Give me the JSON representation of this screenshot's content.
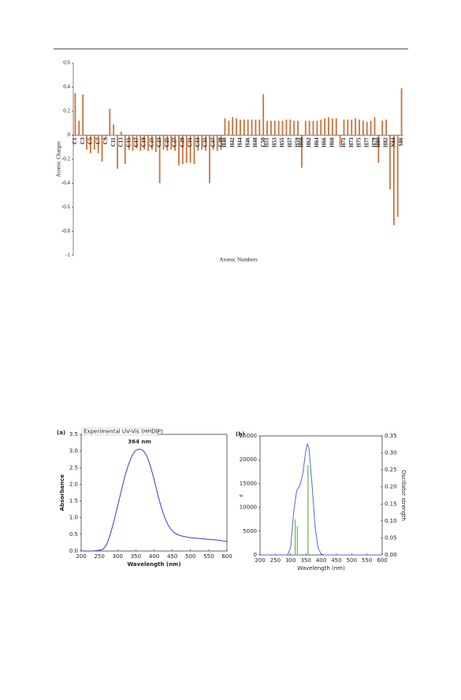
{
  "chart_data": [
    {
      "type": "bar",
      "xlabel": "Atomic Numbers",
      "ylabel": "Atomic Charges",
      "color": "#c8743c",
      "ylim": [
        -1,
        0.6
      ],
      "yticks": [
        0.6,
        0.4,
        0.2,
        0,
        -0.2,
        -0.4,
        -0.6,
        -0.8,
        -1
      ],
      "categories": [
        "C1",
        null,
        "C3",
        null,
        "C5",
        null,
        "C7",
        null,
        "C9",
        null,
        "C11",
        null,
        "C13",
        null,
        "C15",
        null,
        "C17",
        null,
        "C19",
        null,
        "C21",
        null,
        "C23",
        null,
        "C25",
        null,
        "C27",
        null,
        "C29",
        null,
        "C31",
        null,
        "C33",
        null,
        "C35",
        null,
        "C37",
        null,
        "C39",
        "H40",
        null,
        "H42",
        null,
        "H44",
        null,
        "H46",
        null,
        "H48",
        null,
        "C50",
        "H51",
        null,
        "H53",
        null,
        "H55",
        null,
        "H57",
        null,
        "H59",
        "H60",
        null,
        "H62",
        null,
        "H64",
        null,
        "H66",
        null,
        "H68",
        null,
        null,
        "H71",
        null,
        "H73",
        null,
        "H75",
        null,
        "H77",
        null,
        "H79",
        "H80",
        null,
        "H82",
        null,
        "N84",
        null,
        "S86"
      ],
      "values": [
        0.35,
        0.12,
        0.34,
        -0.12,
        -0.15,
        -0.12,
        -0.15,
        -0.22,
        -0.02,
        0.22,
        0.09,
        -0.28,
        0.03,
        -0.24,
        -0.12,
        -0.13,
        -0.11,
        -0.13,
        -0.12,
        -0.13,
        -0.12,
        -0.14,
        -0.4,
        -0.12,
        -0.13,
        -0.12,
        -0.13,
        -0.25,
        -0.24,
        -0.23,
        -0.23,
        -0.24,
        -0.13,
        -0.12,
        -0.13,
        -0.4,
        -0.12,
        -0.13,
        -0.12,
        0.14,
        0.12,
        0.15,
        0.14,
        0.13,
        0.13,
        0.13,
        0.13,
        0.13,
        0.13,
        0.34,
        0.12,
        0.12,
        0.12,
        0.12,
        0.12,
        0.13,
        0.13,
        0.12,
        0.12,
        -0.27,
        0.12,
        0.12,
        0.12,
        0.12,
        0.13,
        0.14,
        0.15,
        0.14,
        0.14,
        -0.1,
        0.13,
        0.13,
        0.13,
        0.14,
        0.13,
        0.12,
        0.11,
        0.12,
        0.15,
        -0.23,
        0.12,
        0.13,
        -0.45,
        -0.75,
        -0.68,
        0.39
      ]
    },
    {
      "type": "line",
      "panel": "(a)",
      "xlabel": "Wavelength (nm)",
      "ylabel": "Absorbance",
      "annotation": "364 nm",
      "xlim": [
        200,
        600
      ],
      "xticks": [
        200,
        250,
        300,
        350,
        400,
        450,
        500,
        550,
        600
      ],
      "ylim": [
        0,
        3.5
      ],
      "yticks": [
        {
          "value": 0,
          "label": "0.0"
        },
        0.5,
        {
          "value": 1,
          "label": "1.0"
        },
        1.5,
        {
          "value": 2,
          "label": "2.0"
        },
        2.5,
        {
          "value": 3,
          "label": "3.0"
        },
        3.5
      ],
      "x": [
        200,
        210,
        220,
        230,
        240,
        250,
        260,
        270,
        280,
        290,
        300,
        310,
        320,
        330,
        340,
        350,
        360,
        370,
        380,
        390,
        400,
        410,
        420,
        430,
        440,
        450,
        460,
        470,
        480,
        490,
        500,
        510,
        520,
        530,
        540,
        550,
        560,
        570,
        580,
        590,
        600
      ],
      "series": [
        {
          "name": "Experimental UV-Vis (HHDIP)",
          "color": "#3a3ad8",
          "values": [
            0,
            0,
            0,
            0,
            0.01,
            0.02,
            0.05,
            0.2,
            0.5,
            0.9,
            1.35,
            1.8,
            2.25,
            2.6,
            2.88,
            3.02,
            3.06,
            3.02,
            2.85,
            2.55,
            2.15,
            1.7,
            1.3,
            0.98,
            0.75,
            0.6,
            0.52,
            0.47,
            0.44,
            0.42,
            0.4,
            0.39,
            0.38,
            0.37,
            0.36,
            0.35,
            0.34,
            0.33,
            0.32,
            0.3,
            0.28
          ]
        }
      ]
    },
    {
      "type": "combo",
      "panel": "(b)",
      "xlabel": "Wavelength (nm)",
      "ylabel": "ε",
      "y2label": "Oscillator strength",
      "xlim": [
        200,
        600
      ],
      "xticks": [
        200,
        250,
        300,
        350,
        400,
        450,
        500,
        550,
        600
      ],
      "ylim": [
        0,
        25000
      ],
      "yticks": [
        0,
        5000,
        10000,
        15000,
        20000,
        25000
      ],
      "y2lim": [
        0,
        0.35
      ],
      "y2ticks": [
        {
          "value": 0,
          "label": "0.00"
        },
        0.05,
        {
          "value": 0.1,
          "label": "0.10"
        },
        0.15,
        {
          "value": 0.2,
          "label": "0.20"
        },
        0.25,
        {
          "value": 0.3,
          "label": "0.30"
        },
        0.35
      ],
      "series": [
        {
          "type": "line",
          "color": "#5566dd",
          "x": [
            200,
            250,
            280,
            290,
            300,
            310,
            320,
            330,
            340,
            350,
            355,
            360,
            370,
            380,
            390,
            400,
            410,
            450,
            500,
            550,
            600
          ],
          "values": [
            0,
            0,
            0,
            0,
            1500,
            9000,
            13500,
            14500,
            17000,
            22000,
            23300,
            22500,
            15000,
            6000,
            1500,
            200,
            0,
            0,
            0,
            0,
            0
          ]
        },
        {
          "type": "bar",
          "axis": "y2",
          "color": "#66bb44",
          "x": [
            315,
            322,
            357
          ],
          "values": [
            0.105,
            0.085,
            0.264
          ]
        }
      ]
    }
  ]
}
